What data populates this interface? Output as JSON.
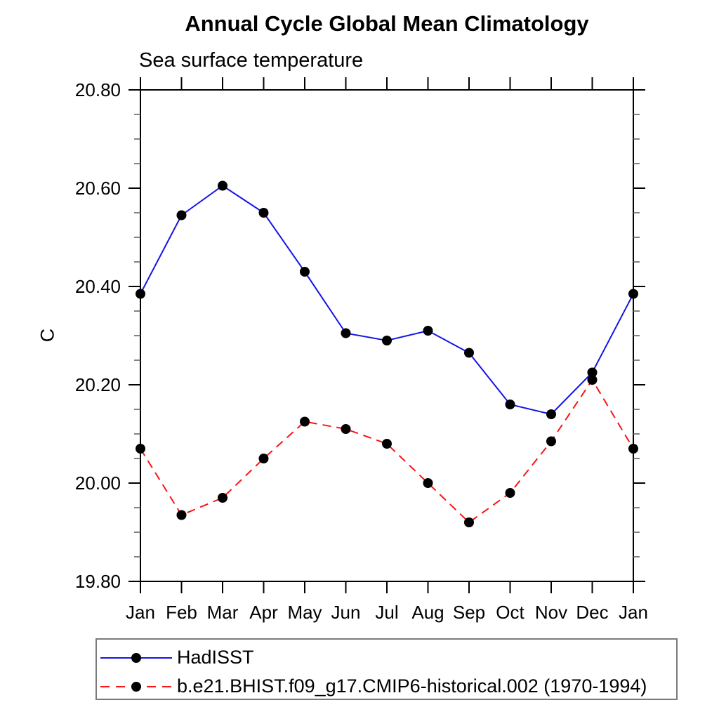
{
  "chart_data": {
    "type": "line",
    "title": "Annual Cycle Global Mean Climatology",
    "subtitle": "Sea surface temperature",
    "ylabel": "C",
    "xlabel": "",
    "categories": [
      "Jan",
      "Feb",
      "Mar",
      "Apr",
      "May",
      "Jun",
      "Jul",
      "Aug",
      "Sep",
      "Oct",
      "Nov",
      "Dec",
      "Jan"
    ],
    "ylim": [
      19.8,
      20.8
    ],
    "ytick_values": [
      19.8,
      20.0,
      20.2,
      20.4,
      20.6,
      20.8
    ],
    "ytick_labels": [
      "19.80",
      "20.00",
      "20.20",
      "20.40",
      "20.60",
      "20.80"
    ],
    "ytick_minor_step": 0.05,
    "grid": false,
    "legend_position": "bottom-left",
    "axis_color": "#000000",
    "minor_tick_color": "#666666",
    "marker_color": "#000000",
    "series": [
      {
        "name": "HadISST",
        "color": "#1414e6",
        "line_style": "solid",
        "marker": "circle",
        "values": [
          20.385,
          20.545,
          20.605,
          20.55,
          20.43,
          20.305,
          20.29,
          20.31,
          20.265,
          20.16,
          20.14,
          20.225,
          20.385
        ]
      },
      {
        "name": "b.e21.BHIST.f09_g17.CMIP6-historical.002 (1970-1994)",
        "color": "#fa1414",
        "line_style": "dashed",
        "marker": "circle",
        "values": [
          20.07,
          19.935,
          19.97,
          20.05,
          20.125,
          20.11,
          20.08,
          20.0,
          19.92,
          19.98,
          20.085,
          20.21,
          20.07
        ]
      }
    ]
  }
}
